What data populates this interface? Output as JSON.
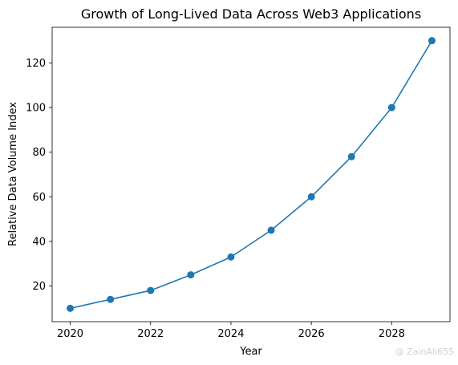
{
  "chart_data": {
    "type": "line",
    "title": "Growth of Long-Lived Data Across Web3 Applications",
    "xlabel": "Year",
    "ylabel": "Relative Data Volume Index",
    "x": [
      2020,
      2021,
      2022,
      2023,
      2024,
      2025,
      2026,
      2027,
      2028,
      2029
    ],
    "series": [
      {
        "values": [
          10,
          14,
          18,
          25,
          33,
          45,
          60,
          78,
          100,
          130
        ],
        "color": "#1f77b4",
        "marker": "circle"
      }
    ],
    "xticks": [
      2020,
      2022,
      2024,
      2026,
      2028
    ],
    "yticks": [
      20,
      40,
      60,
      80,
      100,
      120
    ],
    "xlim": [
      2019.55,
      2029.45
    ],
    "ylim": [
      4,
      136
    ],
    "grid": false,
    "legend": "none"
  },
  "watermark": "@ ZainAli655"
}
